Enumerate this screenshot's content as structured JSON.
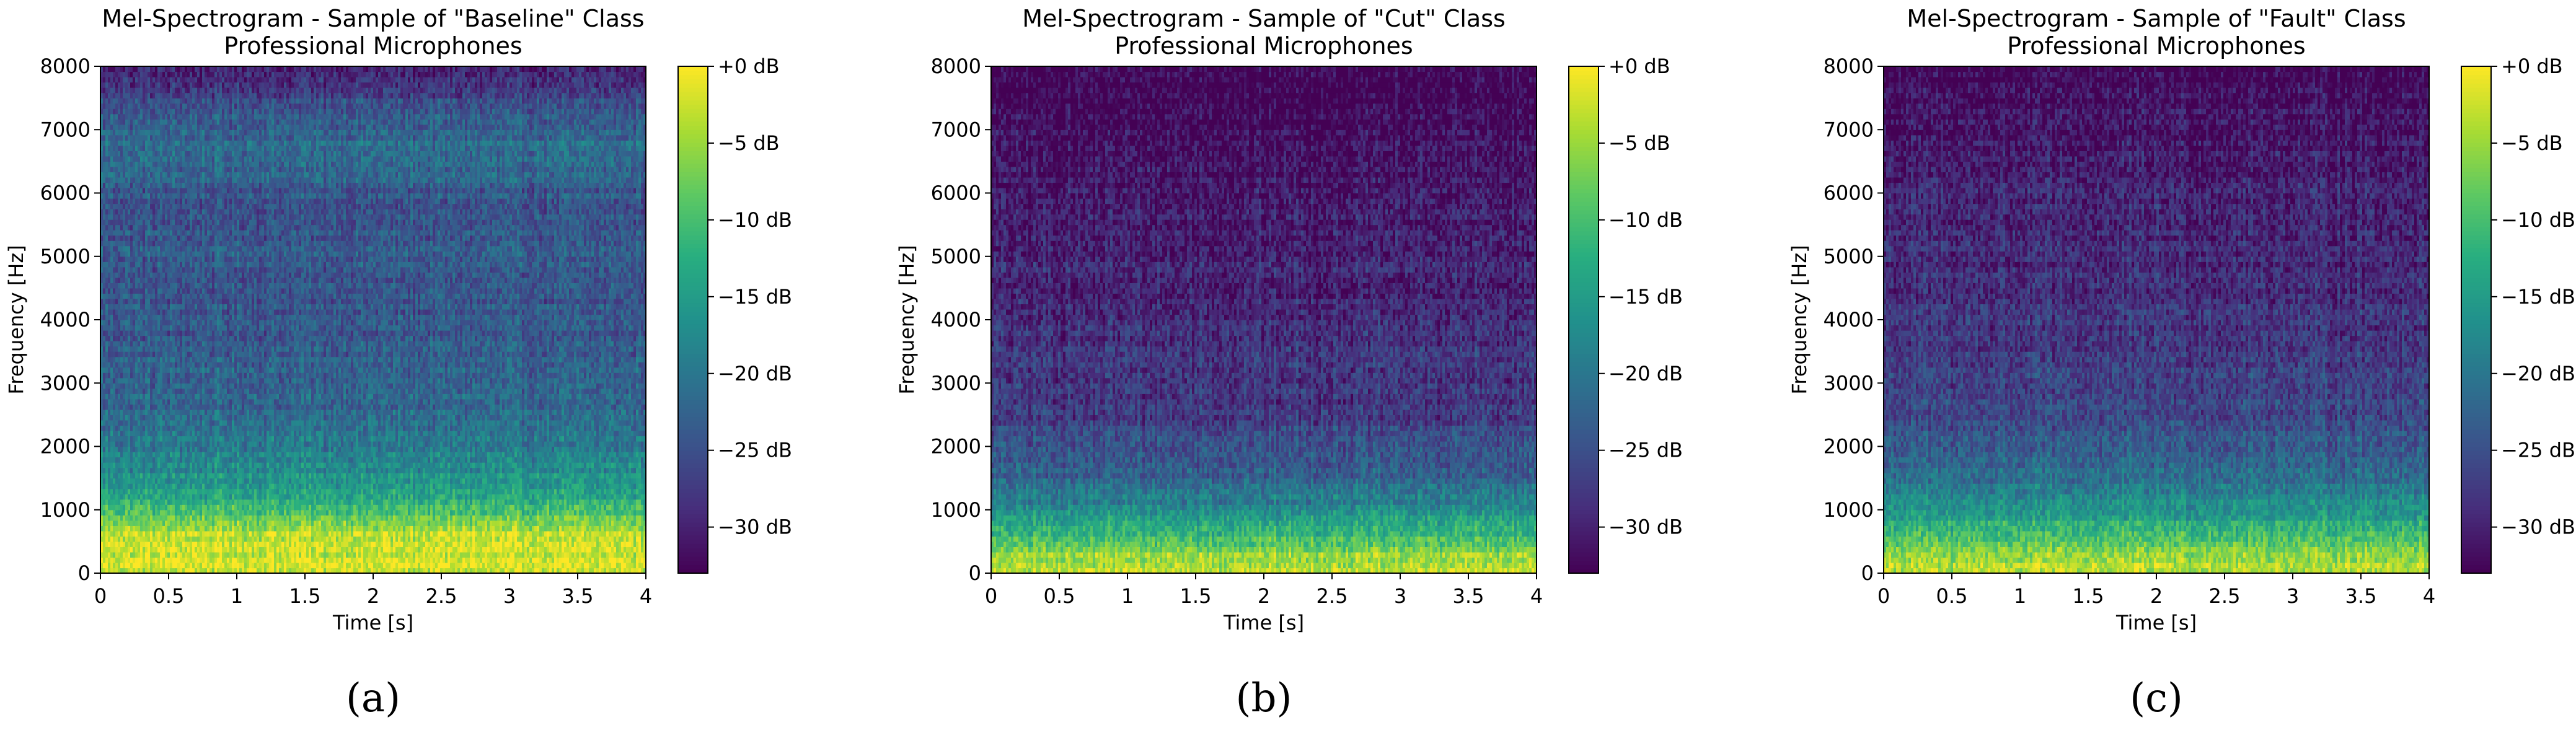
{
  "chart_data": [
    {
      "type": "heatmap",
      "title": "Mel-Spectrogram - Sample of \"Baseline\" Class",
      "subtitle": "Professional Microphones",
      "xlabel": "Time [s]",
      "ylabel": "Frequency [Hz]",
      "xlim": [
        0,
        4
      ],
      "ylim": [
        0,
        8000
      ],
      "xticks": [
        "0",
        "0.5",
        "1",
        "1.5",
        "2",
        "2.5",
        "3",
        "3.5",
        "4"
      ],
      "yticks": [
        "0",
        "1000",
        "2000",
        "3000",
        "4000",
        "5000",
        "6000",
        "7000",
        "8000"
      ],
      "colorbar": {
        "range_db": [
          -33,
          0
        ],
        "ticks": [
          "+0 dB",
          "−5 dB",
          "−10 dB",
          "−15 dB",
          "−20 dB",
          "−25 dB",
          "−30 dB"
        ],
        "colormap": "viridis"
      },
      "intensity_profile": [
        {
          "freq_hz": 0,
          "db": -2
        },
        {
          "freq_hz": 600,
          "db": -3
        },
        {
          "freq_hz": 900,
          "db": -8
        },
        {
          "freq_hz": 1200,
          "db": -13
        },
        {
          "freq_hz": 1600,
          "db": -17
        },
        {
          "freq_hz": 2500,
          "db": -22
        },
        {
          "freq_hz": 4000,
          "db": -24
        },
        {
          "freq_hz": 6000,
          "db": -24
        },
        {
          "freq_hz": 6700,
          "db": -21
        },
        {
          "freq_hz": 7200,
          "db": -24
        },
        {
          "freq_hz": 7800,
          "db": -28
        },
        {
          "freq_hz": 8000,
          "db": -31
        }
      ],
      "caption": "(a)"
    },
    {
      "type": "heatmap",
      "title": "Mel-Spectrogram - Sample of \"Cut\" Class",
      "subtitle": "Professional Microphones",
      "xlabel": "Time [s]",
      "ylabel": "Frequency [Hz]",
      "xlim": [
        0,
        4
      ],
      "ylim": [
        0,
        8000
      ],
      "xticks": [
        "0",
        "0.5",
        "1",
        "1.5",
        "2",
        "2.5",
        "3",
        "3.5",
        "4"
      ],
      "yticks": [
        "0",
        "1000",
        "2000",
        "3000",
        "4000",
        "5000",
        "6000",
        "7000",
        "8000"
      ],
      "colorbar": {
        "range_db": [
          -33,
          0
        ],
        "ticks": [
          "+0 dB",
          "−5 dB",
          "−10 dB",
          "−15 dB",
          "−20 dB",
          "−25 dB",
          "−30 dB"
        ],
        "colormap": "viridis"
      },
      "intensity_profile": [
        {
          "freq_hz": 0,
          "db": -3
        },
        {
          "freq_hz": 300,
          "db": -5
        },
        {
          "freq_hz": 600,
          "db": -11
        },
        {
          "freq_hz": 1000,
          "db": -17
        },
        {
          "freq_hz": 1500,
          "db": -23
        },
        {
          "freq_hz": 2500,
          "db": -27
        },
        {
          "freq_hz": 4000,
          "db": -29
        },
        {
          "freq_hz": 6000,
          "db": -31
        },
        {
          "freq_hz": 7500,
          "db": -33
        },
        {
          "freq_hz": 8000,
          "db": -33
        }
      ],
      "caption": "(b)"
    },
    {
      "type": "heatmap",
      "title": "Mel-Spectrogram - Sample of \"Fault\" Class",
      "subtitle": "Professional Microphones",
      "xlabel": "Time [s]",
      "ylabel": "Frequency [Hz]",
      "xlim": [
        0,
        4
      ],
      "ylim": [
        0,
        8000
      ],
      "xticks": [
        "0",
        "0.5",
        "1",
        "1.5",
        "2",
        "2.5",
        "3",
        "3.5",
        "4"
      ],
      "yticks": [
        "0",
        "1000",
        "2000",
        "3000",
        "4000",
        "5000",
        "6000",
        "7000",
        "8000"
      ],
      "colorbar": {
        "range_db": [
          -33,
          0
        ],
        "ticks": [
          "+0 dB",
          "−5 dB",
          "−10 dB",
          "−15 dB",
          "−20 dB",
          "−25 dB",
          "−30 dB"
        ],
        "colormap": "viridis"
      },
      "intensity_profile": [
        {
          "freq_hz": 0,
          "db": -3
        },
        {
          "freq_hz": 300,
          "db": -5
        },
        {
          "freq_hz": 600,
          "db": -10
        },
        {
          "freq_hz": 1000,
          "db": -16
        },
        {
          "freq_hz": 1500,
          "db": -21
        },
        {
          "freq_hz": 2500,
          "db": -26
        },
        {
          "freq_hz": 4000,
          "db": -28
        },
        {
          "freq_hz": 6000,
          "db": -30
        },
        {
          "freq_hz": 7500,
          "db": -32
        },
        {
          "freq_hz": 8000,
          "db": -33
        }
      ],
      "caption": "(c)"
    }
  ]
}
